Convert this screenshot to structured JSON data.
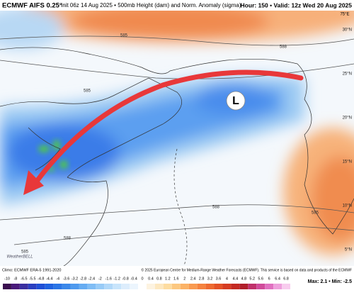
{
  "header": {
    "title": "ECMWF AIFS 0.25°",
    "subtitle": "Init 06z 14 Aug 2025 • 500mb Height (dam) and Norm. Anomaly (sigma)",
    "valid": "Hour: 150 • Valid: 12z Wed 20 Aug 2025"
  },
  "map": {
    "low_label": "L",
    "contours": [
      "585",
      "588",
      "585",
      "588",
      "585",
      "588",
      "585"
    ],
    "lat_labels": [
      "30°N",
      "25°N",
      "20°N",
      "15°N",
      "10°N",
      "5°N"
    ],
    "lon_label": "75°E",
    "watermark": "WeatherBELL"
  },
  "footer": {
    "climo": "Climo: ECMWF ERA-5 1991-2020",
    "copyright": "© 2025 European Centre for Medium-Range Weather Forecasts (ECMWF). This service is based on data and products of the ECMWF",
    "maxmin": "Max: 2.1 • Min: -2.5"
  },
  "colorbar": {
    "labels": [
      "-10",
      "-8",
      "-6.5",
      "-5.5",
      "-4.8",
      "-4.4",
      "-4",
      "-3.6",
      "-3.2",
      "-2.8",
      "-2.4",
      "-2",
      "-1.6",
      "-1.2",
      "-0.8",
      "-0.4",
      "0",
      "0.4",
      "0.8",
      "1.2",
      "1.6",
      "2",
      "2.4",
      "2.8",
      "3.2",
      "3.6",
      "4",
      "4.4",
      "4.8",
      "5.2",
      "5.6",
      "6",
      "6.4",
      "6.8"
    ],
    "colors": [
      "#3b0f4f",
      "#4a1a7a",
      "#3a2fa0",
      "#2a3fc0",
      "#1f4fd6",
      "#1f62e0",
      "#2a75e6",
      "#3b88ea",
      "#4f9aee",
      "#66acf2",
      "#7fbdf5",
      "#98cbf7",
      "#b1d8f9",
      "#c8e4fb",
      "#dcedfc",
      "#ecf5fd",
      "#ffffff",
      "#fdf3e0",
      "#fde8c0",
      "#fddca0",
      "#fcc880",
      "#fbb266",
      "#f99a50",
      "#f5823e",
      "#ee6a30",
      "#e45226",
      "#d63c22",
      "#c42a22",
      "#b01e2a",
      "#c0306a",
      "#d04a9a",
      "#e070c0",
      "#eea0dc",
      "#f8ccee"
    ]
  }
}
